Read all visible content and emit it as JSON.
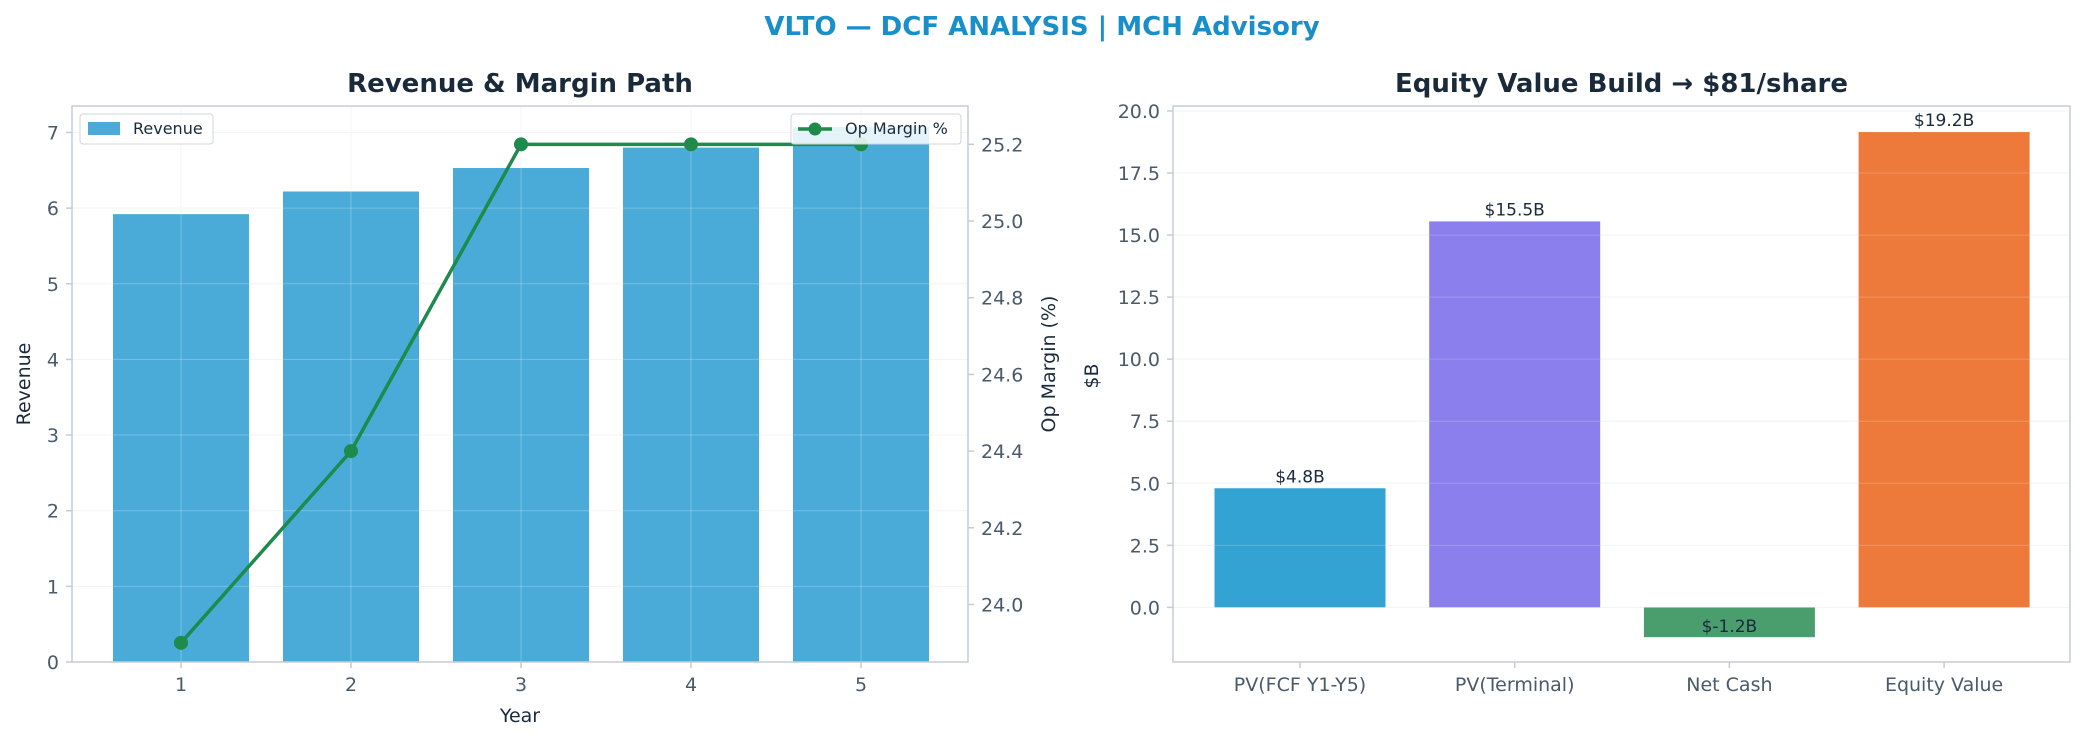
{
  "suptitle": "VLTO — DCF ANALYSIS | MCH Advisory",
  "colors": {
    "title": "#1a8ec9",
    "revenue": "#4aaad8",
    "margin": "#1e8a4c",
    "axis": "#c5ccd6",
    "grid": "#eef1f5",
    "text": "#1a2a3a",
    "tick": "#4a5a6a"
  },
  "chart_data": [
    {
      "type": "bar+line",
      "title": "Revenue & Margin Path",
      "xlabel": "Year",
      "ylabel": "Revenue",
      "y2label": "Op Margin (%)",
      "x": [
        1,
        2,
        3,
        4,
        5
      ],
      "xticks": [
        "1",
        "2",
        "3",
        "4",
        "5"
      ],
      "ylim": [
        0,
        7.35
      ],
      "yticks": [
        0,
        1,
        2,
        3,
        4,
        5,
        6,
        7
      ],
      "y2lim": [
        23.85,
        25.3
      ],
      "y2ticks": [
        24.0,
        24.2,
        24.4,
        24.6,
        24.8,
        25.0,
        25.2
      ],
      "series": [
        {
          "name": "Revenue",
          "kind": "bar",
          "axis": "left",
          "values": [
            5.92,
            6.22,
            6.53,
            6.8,
            7.07
          ]
        },
        {
          "name": "Op Margin %",
          "kind": "line",
          "axis": "right",
          "values": [
            23.9,
            24.4,
            25.2,
            25.2,
            25.2
          ]
        }
      ],
      "grid": true,
      "legend": {
        "bar": "top-left",
        "line": "top-right"
      }
    },
    {
      "type": "bar",
      "title": "Equity Value Build → $81/share",
      "ylabel": "$B",
      "categories": [
        "PV(FCF Y1-Y5)",
        "PV(Terminal)",
        "Net Cash",
        "Equity Value"
      ],
      "values": [
        4.8,
        15.55,
        -1.2,
        19.15
      ],
      "data_labels": [
        "$4.8B",
        "$15.5B",
        "$-1.2B",
        "$19.2B"
      ],
      "colors": [
        "#33a3d4",
        "#8a7fec",
        "#4a9e6e",
        "#ed7a3b"
      ],
      "ylim": [
        -2.2,
        20.2
      ],
      "yticks": [
        0.0,
        2.5,
        5.0,
        7.5,
        10.0,
        12.5,
        15.0,
        17.5,
        20.0
      ],
      "grid": true
    }
  ]
}
